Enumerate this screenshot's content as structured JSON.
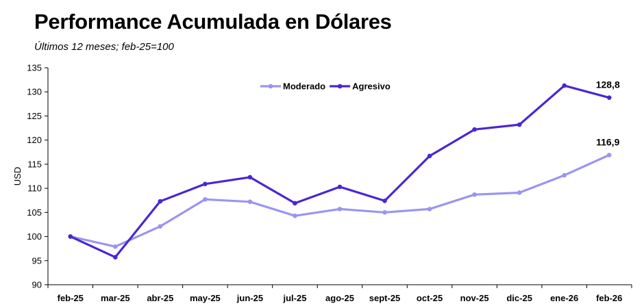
{
  "header": {
    "title": "Performance Acumulada en Dólares",
    "subtitle": "Últimos 12 meses; feb-25=100"
  },
  "colors": {
    "moderado": "#9b94f2",
    "agresivo": "#4a26d4",
    "axis": "#000000"
  },
  "chart_data": {
    "type": "line",
    "title": "Performance Acumulada en Dólares",
    "subtitle": "Últimos 12 meses; feb-25=100",
    "ylabel": "USD",
    "xlabel": "",
    "ylim": [
      90,
      135
    ],
    "yticks": [
      90,
      95,
      100,
      105,
      110,
      115,
      120,
      125,
      130,
      135
    ],
    "grid": false,
    "legend": "top-center",
    "categories": [
      "feb-25",
      "mar-25",
      "abr-25",
      "may-25",
      "jun-25",
      "jul-25",
      "ago-25",
      "sept-25",
      "oct-25",
      "nov-25",
      "dic-25",
      "ene-26",
      "feb-26"
    ],
    "series": [
      {
        "name": "Moderado",
        "color": "#9b94f2",
        "values": [
          100.0,
          97.9,
          102.1,
          107.7,
          107.2,
          104.3,
          105.7,
          105.0,
          105.7,
          108.7,
          109.1,
          112.7,
          116.9
        ],
        "end_label": "116,9"
      },
      {
        "name": "Agresivo",
        "color": "#4a26d4",
        "values": [
          100.0,
          95.7,
          107.3,
          110.9,
          112.3,
          106.9,
          110.3,
          107.4,
          116.7,
          122.2,
          123.2,
          131.3,
          128.8
        ],
        "end_label": "128,8"
      }
    ]
  }
}
